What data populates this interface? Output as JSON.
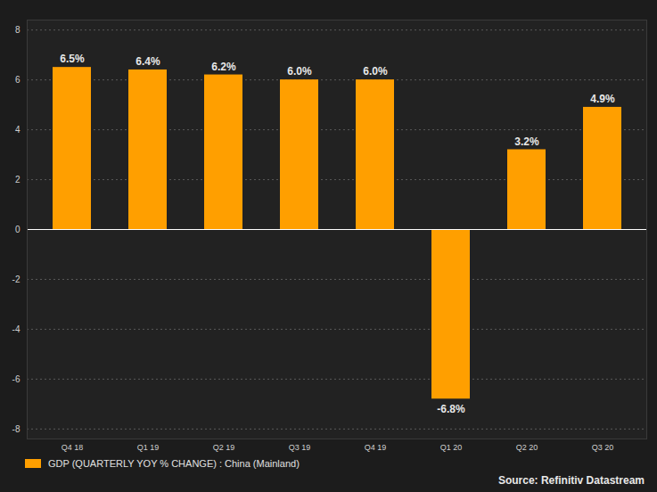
{
  "chart_data": {
    "type": "bar",
    "categories": [
      "Q4 18",
      "Q1 19",
      "Q2 19",
      "Q3 19",
      "Q4 19",
      "Q1 20",
      "Q2 20",
      "Q3 20"
    ],
    "series": [
      {
        "name": "GDP (QUARTERLY YOY % CHANGE) : China (Mainland)",
        "color": "#ff9f00",
        "values": [
          6.5,
          6.4,
          6.2,
          6.0,
          6.0,
          -6.8,
          3.2,
          4.9
        ],
        "value_labels": [
          "6.5%",
          "6.4%",
          "6.2%",
          "6.0%",
          "6.0%",
          "-6.8%",
          "3.2%",
          "4.9%"
        ]
      }
    ],
    "ylim": [
      -8.4,
      8.4
    ],
    "yticks": [
      -8,
      -6,
      -4,
      -2,
      0,
      2,
      4,
      6,
      8
    ],
    "grid": true,
    "data_labels": true,
    "legend": "bottom-left",
    "caption": "Source: Refinitiv Datastream"
  }
}
